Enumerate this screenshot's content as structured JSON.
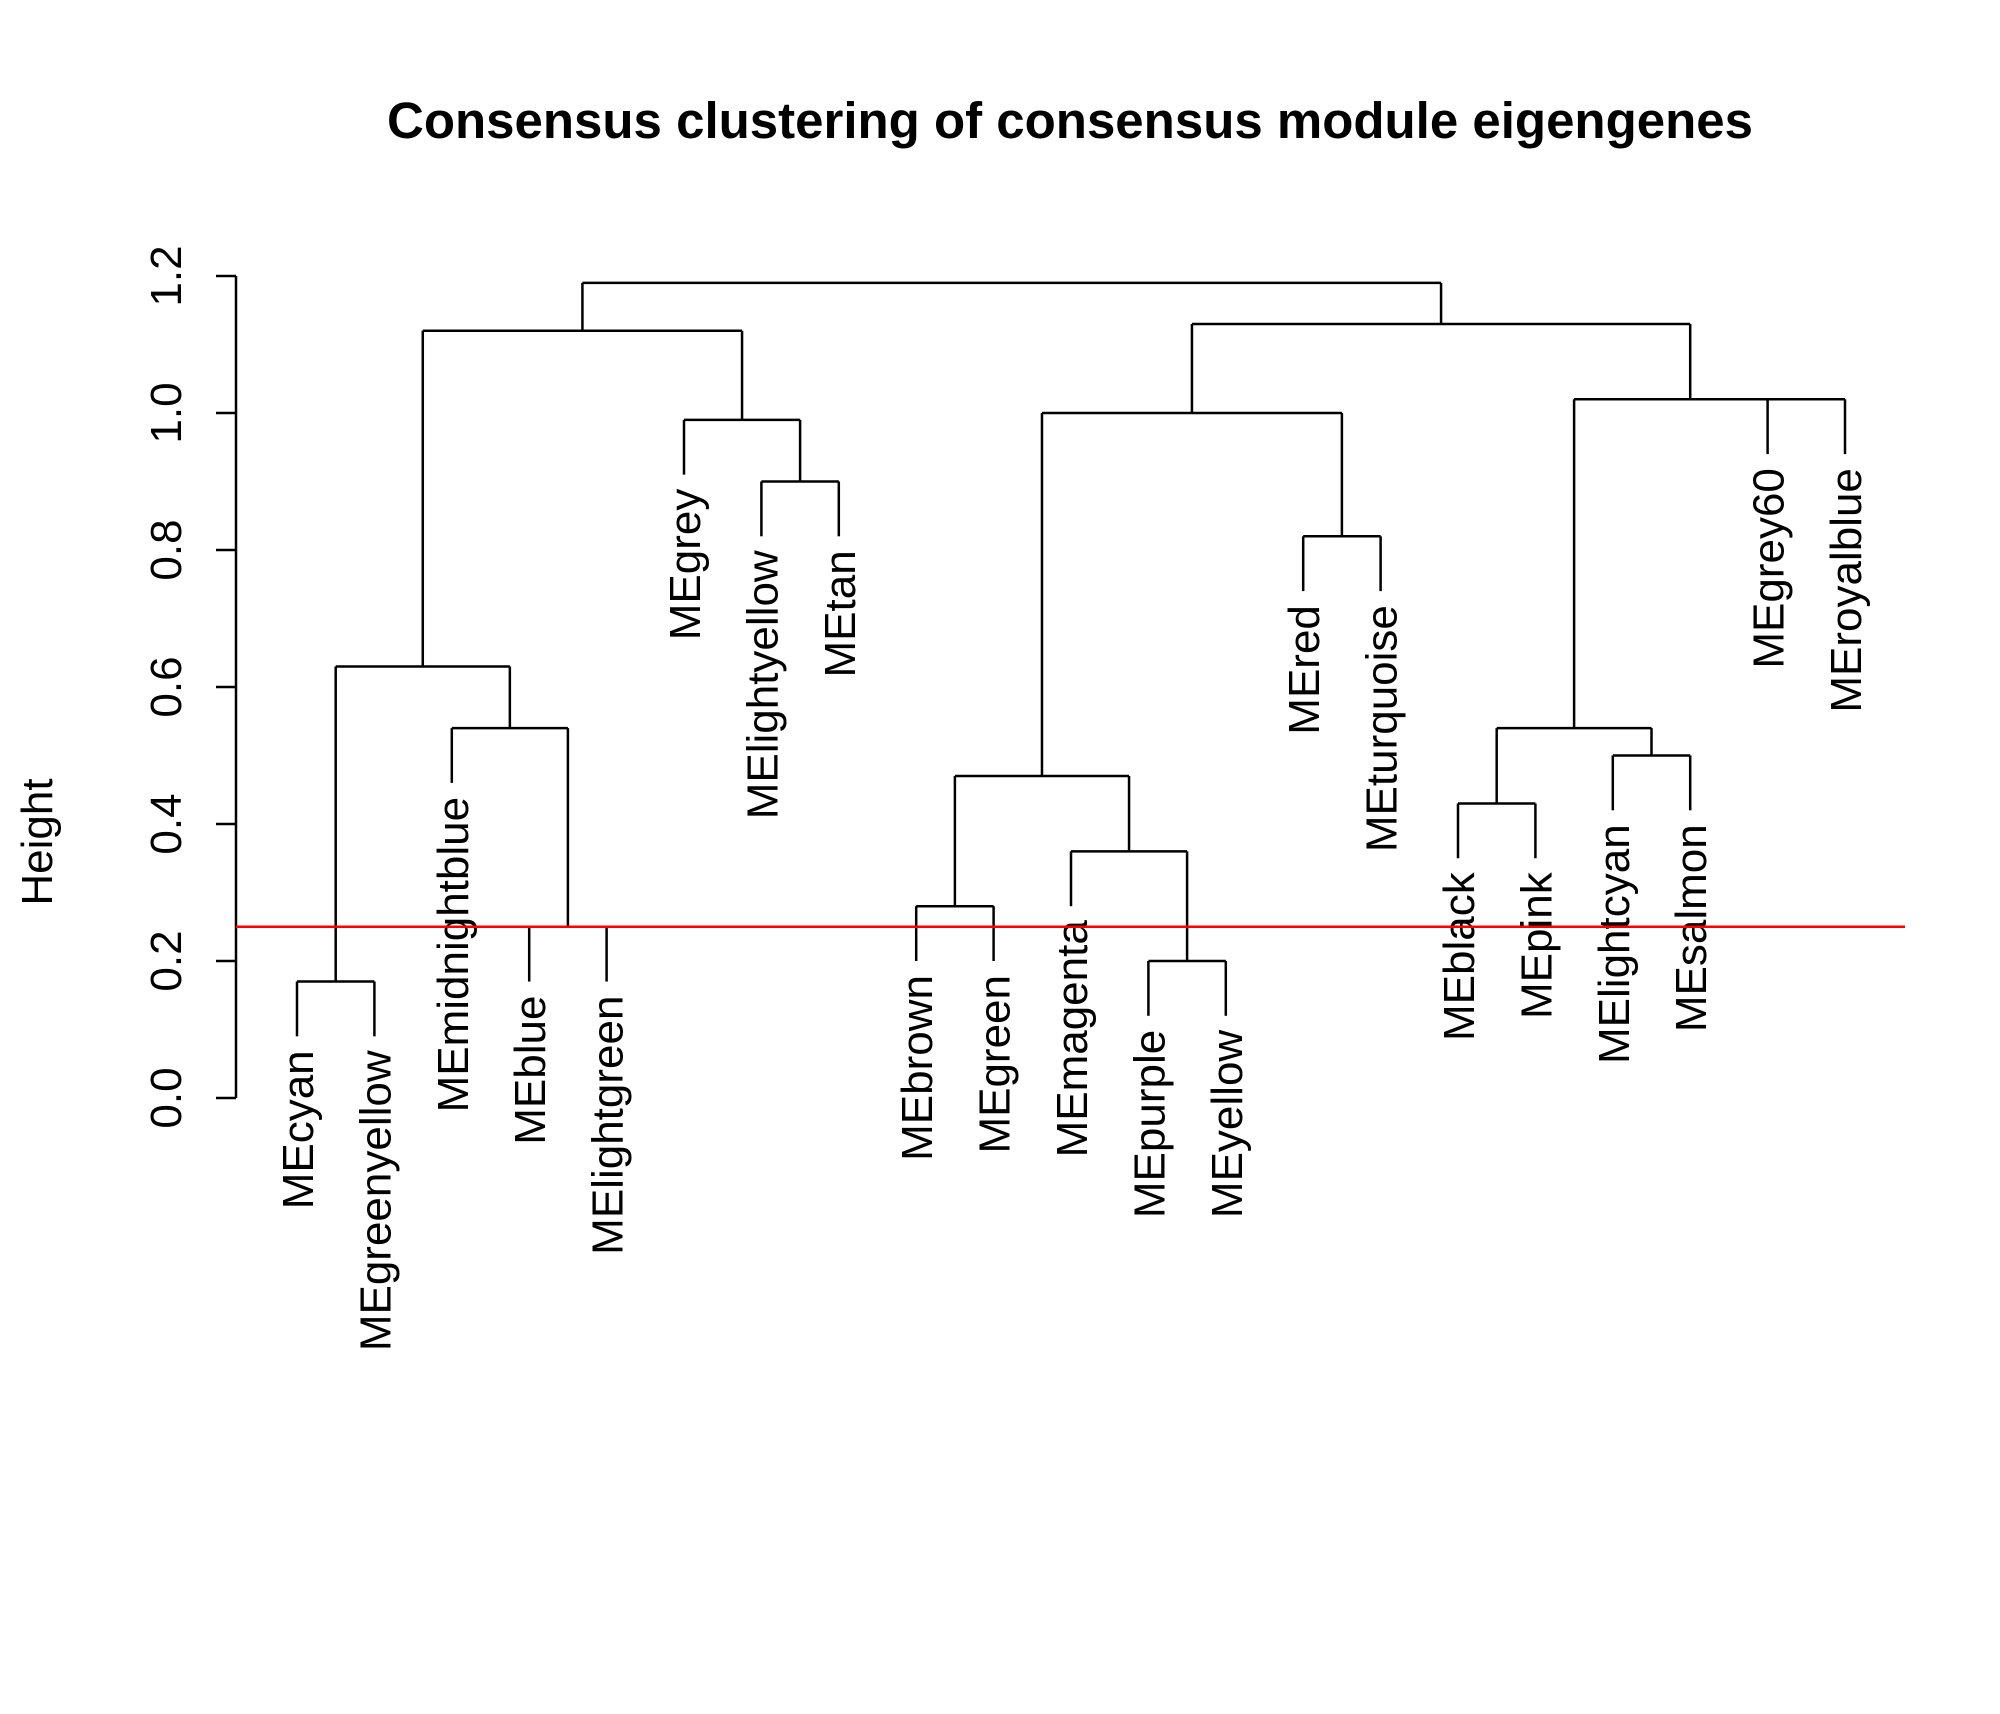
{
  "chart_data": {
    "type": "dendrogram",
    "title": "Consensus clustering of consensus module eigengenes",
    "ylabel": "Height",
    "xlabel": "",
    "ylim": [
      0,
      1.2
    ],
    "yticks": [
      "0.0",
      "0.2",
      "0.4",
      "0.6",
      "0.8",
      "1.0",
      "1.2"
    ],
    "yticks_values": [
      0,
      0.2,
      0.4,
      0.6,
      0.8,
      1.0,
      1.2
    ],
    "cut_height": 0.25,
    "cut_line_color": "#ff0000",
    "line_color": "#000000",
    "leaf_hang": 0.08,
    "leaves": [
      "MEcyan",
      "MEgreenyellow",
      "MEmidnightblue",
      "MEblue",
      "MElightgreen",
      "MEgrey",
      "MElightyellow",
      "MEtan",
      "MEbrown",
      "MEgreen",
      "MEmagenta",
      "MEpurple",
      "MEyellow",
      "MEred",
      "MEturquoise",
      "MEblack",
      "MEpink",
      "MElightcyan",
      "MEsalmon",
      "MEgrey60",
      "MEroyalblue"
    ],
    "merges": [
      {
        "left": "L0",
        "right": "L1",
        "height": 0.17
      },
      {
        "left": "L3",
        "right": "L4",
        "height": 0.25
      },
      {
        "left": "L11",
        "right": "L12",
        "height": 0.2
      },
      {
        "left": "L8",
        "right": "L9",
        "height": 0.28
      },
      {
        "left": "L10",
        "right": "M2",
        "height": 0.36
      },
      {
        "left": "L15",
        "right": "L16",
        "height": 0.43
      },
      {
        "left": "M3",
        "right": "M4",
        "height": 0.47
      },
      {
        "left": "L17",
        "right": "L18",
        "height": 0.5
      },
      {
        "left": "M5",
        "right": "M7",
        "height": 0.54
      },
      {
        "left": "L2",
        "right": "M1",
        "height": 0.54
      },
      {
        "left": "M0",
        "right": "M9",
        "height": 0.63
      },
      {
        "left": "L13",
        "right": "L14",
        "height": 0.82
      },
      {
        "left": "L6",
        "right": "L7",
        "height": 0.9
      },
      {
        "left": "L5",
        "right": "M12",
        "height": 0.99
      },
      {
        "left": "M6",
        "right": "M11",
        "height": 1.0
      },
      {
        "left": "L19",
        "right": "L20",
        "height": 1.02
      },
      {
        "left": "M8",
        "right": "M15",
        "height": 1.02
      },
      {
        "left": "M10",
        "right": "M13",
        "height": 1.12
      },
      {
        "left": "M14",
        "right": "M16",
        "height": 1.13
      },
      {
        "left": "M17",
        "right": "M18",
        "height": 1.19
      }
    ]
  }
}
